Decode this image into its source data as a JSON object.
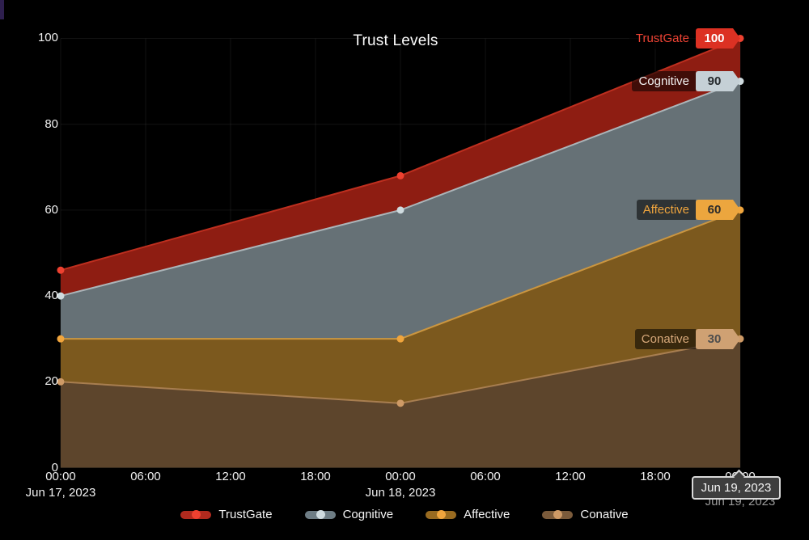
{
  "header": {
    "title": "Trust Levels"
  },
  "chart_data": {
    "type": "area",
    "title": "Trust Levels",
    "x": [
      0,
      24,
      48
    ],
    "x_unit": "hours",
    "x_range_hours": [
      0,
      48
    ],
    "x_ticks": [
      {
        "hour": 0,
        "label": "00:00"
      },
      {
        "hour": 6,
        "label": "06:00"
      },
      {
        "hour": 12,
        "label": "12:00"
      },
      {
        "hour": 18,
        "label": "18:00"
      },
      {
        "hour": 24,
        "label": "00:00"
      },
      {
        "hour": 30,
        "label": "06:00"
      },
      {
        "hour": 36,
        "label": "12:00"
      },
      {
        "hour": 42,
        "label": "18:00"
      },
      {
        "hour": 48,
        "label": "00:00"
      }
    ],
    "x_date_labels": [
      {
        "hour": 0,
        "label": "Jun 17, 2023"
      },
      {
        "hour": 24,
        "label": "Jun 18, 2023"
      },
      {
        "hour": 48,
        "label": "Jun 19, 2023"
      }
    ],
    "y_ticks": [
      0,
      20,
      40,
      60,
      80,
      100
    ],
    "ylim": [
      0,
      100
    ],
    "grid": true,
    "legend_position": "bottom",
    "series": [
      {
        "name": "TrustGate",
        "values": [
          46,
          68,
          100
        ],
        "end_label": "100",
        "fill": "#8e1d12",
        "line": "#be2f1f",
        "point": "#ee4130",
        "legend_bar": "#b12a1e",
        "name_color": "#ef4334",
        "tag_bg": "#dc3123",
        "tag_text": "#ffffff"
      },
      {
        "name": "Cognitive",
        "values": [
          40,
          60,
          90
        ],
        "end_label": "90",
        "fill": "#667176",
        "line": "#abb5b9",
        "point": "#cfdbdf",
        "legend_bar": "#6e7d85",
        "name_color": "#f2f2f2",
        "tag_bg": "#c5d0d6",
        "tag_text": "#24292c"
      },
      {
        "name": "Affective",
        "values": [
          30,
          30,
          60
        ],
        "end_label": "60",
        "fill": "#7c591e",
        "line": "#cb9640",
        "point": "#f0a53d",
        "legend_bar": "#996b20",
        "name_color": "#f0a53d",
        "tag_bg": "#eca63e",
        "tag_text": "#2b2b2b"
      },
      {
        "name": "Conative",
        "values": [
          20,
          15,
          30
        ],
        "end_label": "30",
        "fill": "#5d452c",
        "line": "#a87e50",
        "point": "#ce9a66",
        "legend_bar": "#7b5b3b",
        "name_color": "#d8a97b",
        "tag_bg": "#cfa173",
        "tag_text": "#4d4d4d"
      }
    ]
  },
  "tooltip": {
    "text": "Jun 19, 2023"
  },
  "colors": {
    "background": "#000000",
    "grid": "rgba(255,255,255,0.07)",
    "axis_text": "#f0f0f0"
  }
}
